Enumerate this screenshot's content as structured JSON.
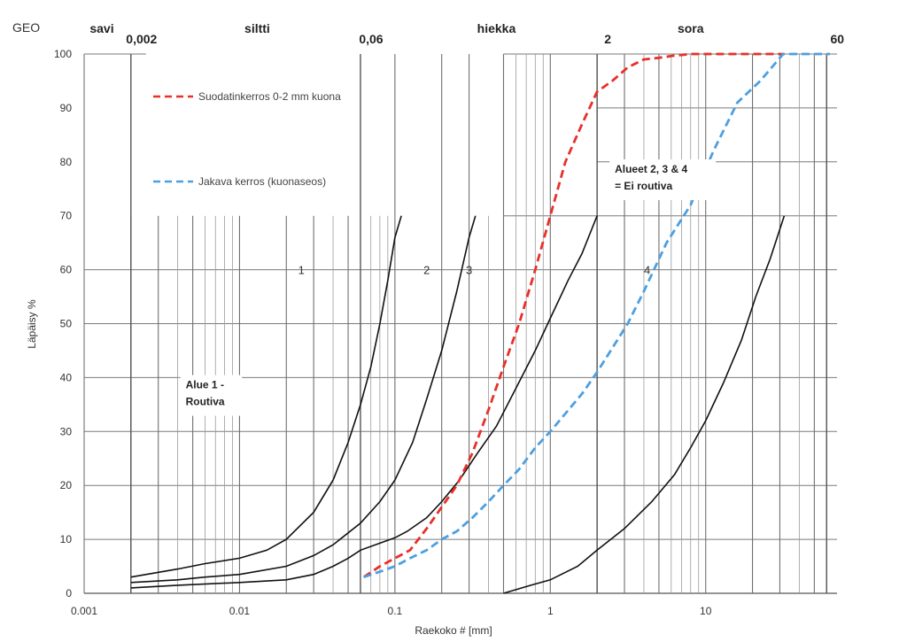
{
  "chart_data": {
    "type": "line",
    "corner_label": "GEO",
    "xlabel": "Raekoko # [mm]",
    "ylabel": "Läpäisy %",
    "xscale": "log",
    "xlim": [
      0.001,
      70
    ],
    "ylim": [
      0,
      100
    ],
    "x_ticks": [
      {
        "value": 0.001,
        "label": "0.001"
      },
      {
        "value": 0.01,
        "label": "0.01"
      },
      {
        "value": 0.1,
        "label": "0.1"
      },
      {
        "value": 1,
        "label": "1"
      },
      {
        "value": 10,
        "label": "10"
      }
    ],
    "y_ticks": [
      0,
      10,
      20,
      30,
      40,
      50,
      60,
      70,
      80,
      90,
      100
    ],
    "grid": true,
    "soil_classes": [
      {
        "name": "savi",
        "at": 0.0013
      },
      {
        "name": "siltti",
        "at": 0.013
      },
      {
        "name": "hiekka",
        "at": 0.45
      },
      {
        "name": "sora",
        "at": 8
      }
    ],
    "class_boundaries": [
      {
        "label": "0,002",
        "value": 0.002
      },
      {
        "label": "0,06",
        "value": 0.06
      },
      {
        "label": "2",
        "value": 2
      },
      {
        "label": "60",
        "value": 60
      }
    ],
    "series": [
      {
        "name": "Suodatinkerros 0-2 mm kuona",
        "color": "#e8302a",
        "dash": true,
        "points": [
          [
            0.063,
            3
          ],
          [
            0.08,
            5
          ],
          [
            0.1,
            6.5
          ],
          [
            0.125,
            8
          ],
          [
            0.16,
            12
          ],
          [
            0.2,
            16
          ],
          [
            0.25,
            20
          ],
          [
            0.315,
            26
          ],
          [
            0.4,
            34
          ],
          [
            0.5,
            42
          ],
          [
            0.63,
            50
          ],
          [
            0.8,
            60
          ],
          [
            1,
            70
          ],
          [
            1.25,
            80
          ],
          [
            1.6,
            87
          ],
          [
            2,
            93
          ],
          [
            2.5,
            95
          ],
          [
            3.15,
            97.5
          ],
          [
            4,
            99
          ],
          [
            5,
            99.3
          ],
          [
            6.3,
            99.7
          ],
          [
            8,
            100
          ],
          [
            16,
            100
          ],
          [
            32,
            100
          ]
        ]
      },
      {
        "name": "Jakava kerros (kuonaseos)",
        "color": "#4d9fe0",
        "dash": true,
        "points": [
          [
            0.063,
            3
          ],
          [
            0.08,
            4
          ],
          [
            0.1,
            5
          ],
          [
            0.125,
            6.5
          ],
          [
            0.16,
            8
          ],
          [
            0.2,
            10
          ],
          [
            0.25,
            11.5
          ],
          [
            0.315,
            14
          ],
          [
            0.4,
            17
          ],
          [
            0.5,
            20
          ],
          [
            0.63,
            23
          ],
          [
            0.8,
            27
          ],
          [
            1,
            30
          ],
          [
            1.6,
            37
          ],
          [
            2,
            41
          ],
          [
            3.15,
            50
          ],
          [
            4,
            56
          ],
          [
            5.6,
            65
          ],
          [
            8,
            72
          ],
          [
            11.2,
            82
          ],
          [
            16,
            91
          ],
          [
            22.4,
            95
          ],
          [
            31.5,
            100
          ],
          [
            63,
            100
          ]
        ]
      }
    ],
    "zone_curves": [
      {
        "points": [
          [
            0.002,
            3
          ],
          [
            0.004,
            4.5
          ],
          [
            0.006,
            5.5
          ],
          [
            0.01,
            6.5
          ],
          [
            0.015,
            8
          ],
          [
            0.02,
            10
          ],
          [
            0.03,
            15
          ],
          [
            0.04,
            21
          ],
          [
            0.05,
            28
          ],
          [
            0.06,
            35
          ],
          [
            0.07,
            42
          ],
          [
            0.08,
            50
          ],
          [
            0.09,
            58
          ],
          [
            0.1,
            66
          ],
          [
            0.11,
            70
          ]
        ]
      },
      {
        "points": [
          [
            0.002,
            2
          ],
          [
            0.004,
            2.5
          ],
          [
            0.006,
            3
          ],
          [
            0.01,
            3.5
          ],
          [
            0.02,
            5
          ],
          [
            0.03,
            7
          ],
          [
            0.04,
            9
          ],
          [
            0.06,
            13
          ],
          [
            0.08,
            17
          ],
          [
            0.1,
            21
          ],
          [
            0.13,
            28
          ],
          [
            0.16,
            36
          ],
          [
            0.2,
            45
          ],
          [
            0.25,
            56
          ],
          [
            0.3,
            66
          ],
          [
            0.33,
            70
          ]
        ]
      },
      {
        "points": [
          [
            0.002,
            1
          ],
          [
            0.004,
            1.5
          ],
          [
            0.01,
            2
          ],
          [
            0.02,
            2.5
          ],
          [
            0.03,
            3.5
          ],
          [
            0.04,
            5
          ],
          [
            0.05,
            6.5
          ],
          [
            0.06,
            8
          ],
          [
            0.08,
            9.3
          ],
          [
            0.1,
            10.3
          ],
          [
            0.12,
            11.5
          ],
          [
            0.16,
            14
          ],
          [
            0.2,
            17
          ],
          [
            0.26,
            21
          ],
          [
            0.34,
            26
          ],
          [
            0.45,
            31
          ],
          [
            0.6,
            38
          ],
          [
            0.8,
            45
          ],
          [
            1,
            51
          ],
          [
            1.3,
            58
          ],
          [
            1.6,
            63
          ],
          [
            2,
            70
          ]
        ]
      },
      {
        "points": [
          [
            0.5,
            0
          ],
          [
            0.75,
            1.5
          ],
          [
            1,
            2.5
          ],
          [
            1.5,
            5
          ],
          [
            2,
            8
          ],
          [
            3,
            12
          ],
          [
            4.5,
            17
          ],
          [
            6.3,
            22
          ],
          [
            8,
            27
          ],
          [
            10,
            32
          ],
          [
            13,
            39
          ],
          [
            17,
            47
          ],
          [
            21,
            55
          ],
          [
            26,
            62
          ],
          [
            32,
            70
          ]
        ]
      }
    ],
    "zone_numbers": [
      {
        "label": "1",
        "x": 0.025,
        "y": 60
      },
      {
        "label": "2",
        "x": 0.16,
        "y": 60
      },
      {
        "label": "3",
        "x": 0.3,
        "y": 60
      },
      {
        "label": "4",
        "x": 4.2,
        "y": 60
      }
    ],
    "annotations": [
      {
        "lines": [
          "Alue 1 -",
          "Routiva"
        ],
        "x": 0.0045,
        "y": 38
      },
      {
        "lines": [
          "Alueet 2, 3 & 4",
          "= Ei routiva"
        ],
        "x": 2.6,
        "y": 78
      }
    ]
  }
}
